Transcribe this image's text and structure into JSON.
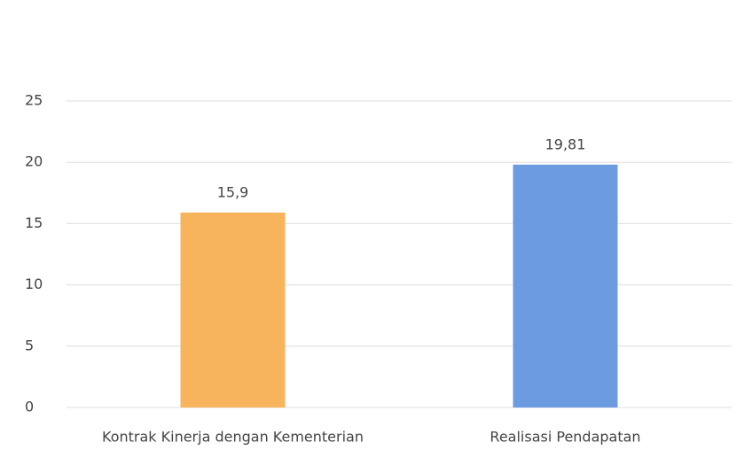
{
  "chart_data": {
    "type": "bar",
    "categories": [
      "Kontrak Kinerja dengan Kementerian",
      "Realisasi Pendapatan"
    ],
    "values": [
      15.9,
      19.81
    ],
    "value_labels": [
      "15,9",
      "19,81"
    ],
    "colors": [
      "#f8b45c",
      "#6d9be0"
    ],
    "ylim": [
      0,
      25
    ],
    "yticks": [
      0,
      5,
      10,
      15,
      20,
      25
    ],
    "grid": true
  }
}
